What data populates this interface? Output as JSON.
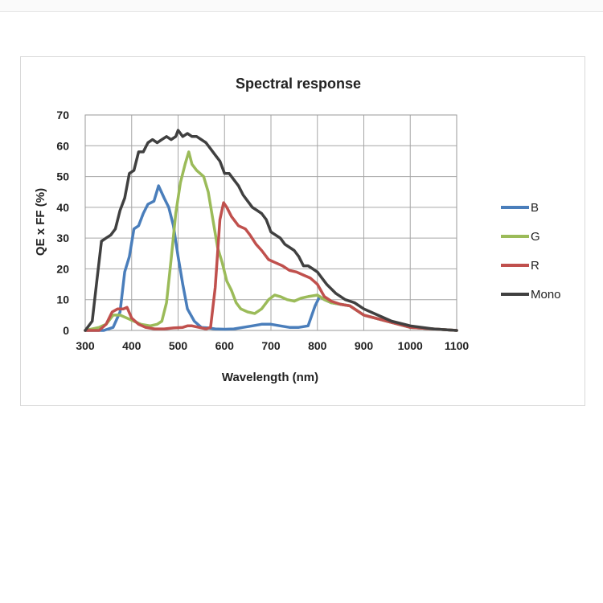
{
  "chart_data": {
    "type": "line",
    "title": "Spectral response",
    "xlabel": "Wavelength (nm)",
    "ylabel": "QE x FF (%)",
    "xlim": [
      300,
      1100
    ],
    "ylim": [
      0,
      70
    ],
    "x_ticks": [
      300,
      400,
      500,
      600,
      700,
      800,
      900,
      1000,
      1100
    ],
    "y_ticks": [
      0,
      10,
      20,
      30,
      40,
      50,
      60,
      70
    ],
    "grid": true,
    "legend_position": "right",
    "series": [
      {
        "name": "B",
        "color": "#4a7ebb",
        "points": [
          [
            300,
            0
          ],
          [
            340,
            0
          ],
          [
            360,
            1
          ],
          [
            375,
            6
          ],
          [
            385,
            19
          ],
          [
            395,
            24
          ],
          [
            405,
            33
          ],
          [
            415,
            34
          ],
          [
            425,
            38
          ],
          [
            435,
            41
          ],
          [
            448,
            42
          ],
          [
            458,
            47
          ],
          [
            470,
            43
          ],
          [
            480,
            40
          ],
          [
            490,
            34
          ],
          [
            500,
            24
          ],
          [
            510,
            15
          ],
          [
            520,
            7
          ],
          [
            535,
            3
          ],
          [
            550,
            1
          ],
          [
            565,
            0.8
          ],
          [
            580,
            0.5
          ],
          [
            600,
            0.4
          ],
          [
            620,
            0.5
          ],
          [
            640,
            1
          ],
          [
            660,
            1.5
          ],
          [
            680,
            2
          ],
          [
            700,
            2
          ],
          [
            720,
            1.5
          ],
          [
            740,
            1
          ],
          [
            760,
            1
          ],
          [
            780,
            1.5
          ],
          [
            795,
            8
          ],
          [
            805,
            11
          ],
          [
            815,
            10
          ],
          [
            830,
            9
          ],
          [
            850,
            8.5
          ],
          [
            870,
            8
          ],
          [
            900,
            5
          ],
          [
            950,
            3
          ],
          [
            1000,
            1
          ],
          [
            1050,
            0.5
          ],
          [
            1100,
            0
          ]
        ]
      },
      {
        "name": "G",
        "color": "#9bbb59",
        "points": [
          [
            300,
            0
          ],
          [
            330,
            1
          ],
          [
            345,
            2
          ],
          [
            360,
            5
          ],
          [
            375,
            5
          ],
          [
            390,
            4
          ],
          [
            405,
            3
          ],
          [
            420,
            2
          ],
          [
            440,
            1.5
          ],
          [
            455,
            2
          ],
          [
            465,
            3
          ],
          [
            475,
            9
          ],
          [
            485,
            23
          ],
          [
            495,
            38
          ],
          [
            505,
            48
          ],
          [
            515,
            54
          ],
          [
            523,
            58
          ],
          [
            530,
            54
          ],
          [
            540,
            52
          ],
          [
            555,
            50
          ],
          [
            565,
            45
          ],
          [
            575,
            36
          ],
          [
            585,
            27
          ],
          [
            595,
            22
          ],
          [
            605,
            16
          ],
          [
            615,
            13
          ],
          [
            625,
            9
          ],
          [
            635,
            7
          ],
          [
            650,
            6
          ],
          [
            665,
            5.5
          ],
          [
            680,
            7
          ],
          [
            695,
            10
          ],
          [
            708,
            11.5
          ],
          [
            720,
            11
          ],
          [
            735,
            10
          ],
          [
            750,
            9.5
          ],
          [
            765,
            10.5
          ],
          [
            780,
            11
          ],
          [
            800,
            11.5
          ],
          [
            815,
            10
          ],
          [
            830,
            9
          ],
          [
            850,
            8.5
          ],
          [
            870,
            8
          ],
          [
            900,
            5
          ],
          [
            950,
            3
          ],
          [
            1000,
            1
          ],
          [
            1050,
            0.5
          ],
          [
            1100,
            0
          ]
        ]
      },
      {
        "name": "R",
        "color": "#c0504d",
        "points": [
          [
            300,
            0
          ],
          [
            330,
            0
          ],
          [
            345,
            2
          ],
          [
            358,
            6
          ],
          [
            370,
            7
          ],
          [
            382,
            7
          ],
          [
            390,
            7.5
          ],
          [
            400,
            4
          ],
          [
            415,
            2
          ],
          [
            430,
            1
          ],
          [
            450,
            0.5
          ],
          [
            470,
            0.5
          ],
          [
            490,
            0.8
          ],
          [
            510,
            1
          ],
          [
            520,
            1.5
          ],
          [
            530,
            1.5
          ],
          [
            545,
            1
          ],
          [
            560,
            0.5
          ],
          [
            570,
            1
          ],
          [
            580,
            14
          ],
          [
            590,
            36
          ],
          [
            598,
            41.5
          ],
          [
            605,
            40
          ],
          [
            615,
            37
          ],
          [
            630,
            34
          ],
          [
            645,
            33
          ],
          [
            655,
            31
          ],
          [
            668,
            28
          ],
          [
            680,
            26
          ],
          [
            695,
            23
          ],
          [
            710,
            22
          ],
          [
            725,
            21
          ],
          [
            740,
            19.5
          ],
          [
            755,
            19
          ],
          [
            770,
            18
          ],
          [
            785,
            17
          ],
          [
            800,
            15
          ],
          [
            815,
            11
          ],
          [
            830,
            9.5
          ],
          [
            850,
            8.5
          ],
          [
            870,
            8
          ],
          [
            900,
            5
          ],
          [
            950,
            3
          ],
          [
            1000,
            1
          ],
          [
            1050,
            0.5
          ],
          [
            1100,
            0
          ]
        ]
      },
      {
        "name": "Mono",
        "color": "#404040",
        "points": [
          [
            300,
            0
          ],
          [
            315,
            3
          ],
          [
            325,
            16
          ],
          [
            335,
            29
          ],
          [
            345,
            30
          ],
          [
            355,
            31
          ],
          [
            365,
            33
          ],
          [
            375,
            39
          ],
          [
            385,
            43
          ],
          [
            395,
            51
          ],
          [
            405,
            52
          ],
          [
            415,
            58
          ],
          [
            425,
            58
          ],
          [
            435,
            61
          ],
          [
            445,
            62
          ],
          [
            455,
            61
          ],
          [
            465,
            62
          ],
          [
            475,
            63
          ],
          [
            485,
            62
          ],
          [
            495,
            63
          ],
          [
            500,
            65
          ],
          [
            510,
            63
          ],
          [
            520,
            64
          ],
          [
            530,
            63
          ],
          [
            540,
            63
          ],
          [
            550,
            62
          ],
          [
            560,
            61
          ],
          [
            570,
            59
          ],
          [
            580,
            57
          ],
          [
            590,
            55
          ],
          [
            600,
            51
          ],
          [
            610,
            51
          ],
          [
            620,
            49
          ],
          [
            630,
            47
          ],
          [
            640,
            44
          ],
          [
            650,
            42
          ],
          [
            660,
            40
          ],
          [
            670,
            39
          ],
          [
            680,
            38
          ],
          [
            690,
            36
          ],
          [
            700,
            32
          ],
          [
            710,
            31
          ],
          [
            720,
            30
          ],
          [
            730,
            28
          ],
          [
            740,
            27
          ],
          [
            750,
            26
          ],
          [
            760,
            24
          ],
          [
            770,
            21
          ],
          [
            780,
            21
          ],
          [
            790,
            20
          ],
          [
            800,
            19
          ],
          [
            810,
            17
          ],
          [
            820,
            15
          ],
          [
            840,
            12
          ],
          [
            860,
            10
          ],
          [
            880,
            9
          ],
          [
            900,
            7
          ],
          [
            930,
            5
          ],
          [
            960,
            3
          ],
          [
            1000,
            1.5
          ],
          [
            1050,
            0.5
          ],
          [
            1100,
            0
          ]
        ]
      }
    ]
  }
}
